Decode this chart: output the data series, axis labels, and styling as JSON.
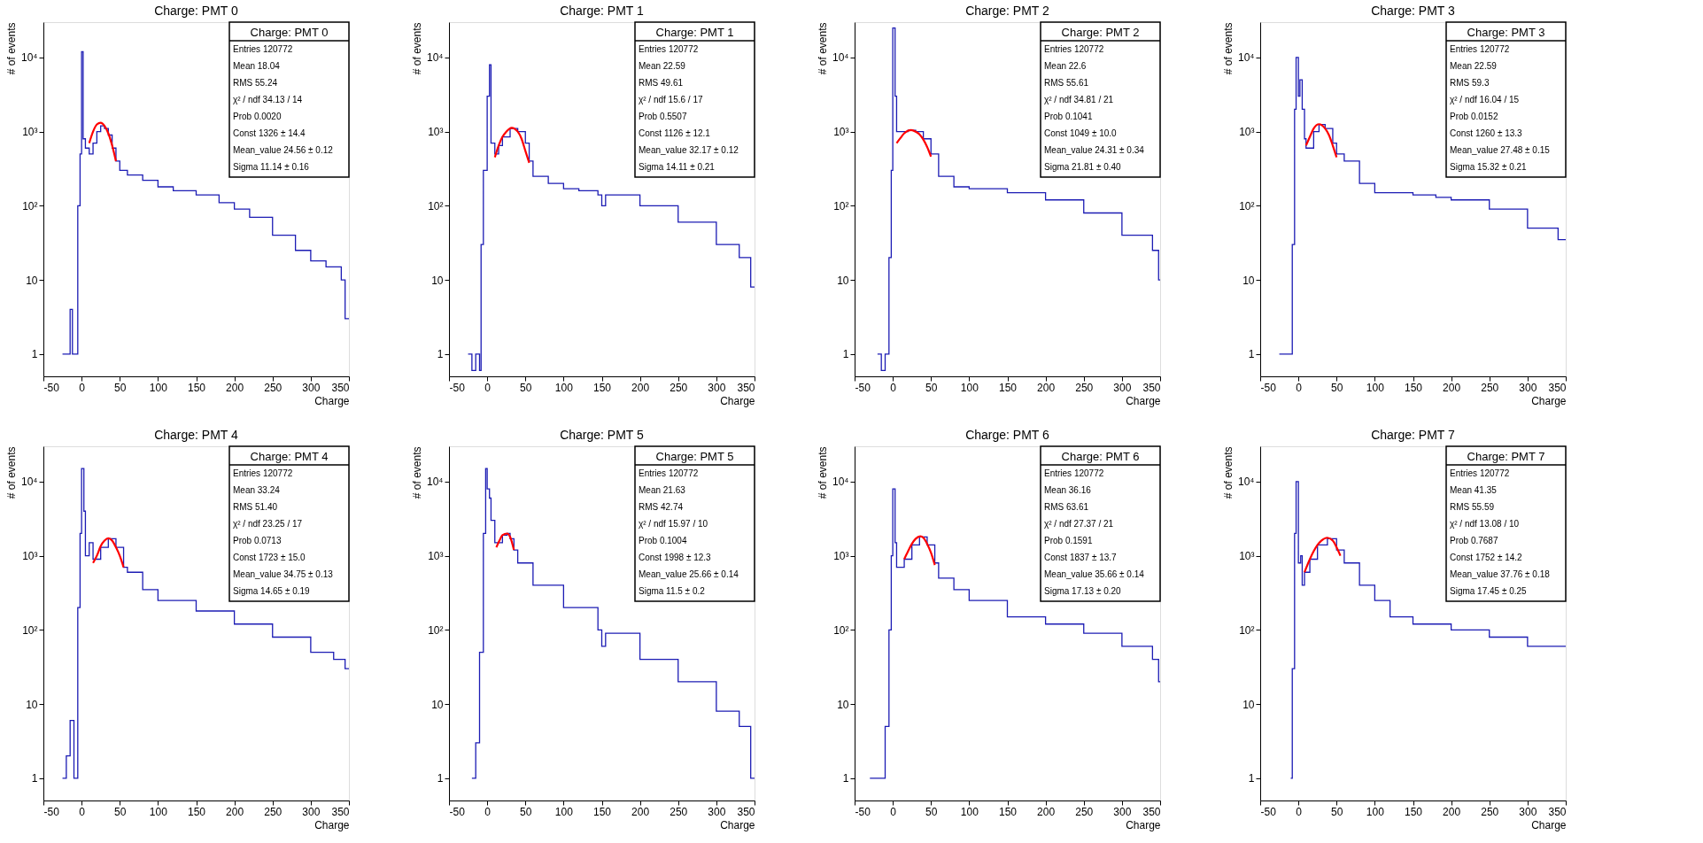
{
  "chart_data": [
    {
      "type": "step",
      "title": "Charge: PMT 0",
      "xlabel": "Charge",
      "ylabel": "# of events",
      "log": true,
      "grid": false,
      "xlim": [
        -50,
        350
      ],
      "xticks": [
        -50,
        0,
        50,
        100,
        150,
        200,
        250,
        300,
        350
      ],
      "ylim": [
        0.5,
        30000
      ],
      "yticks": [
        1,
        10,
        {
          "value": 100,
          "label": "10²"
        },
        {
          "value": 1000,
          "label": "10³"
        },
        {
          "value": 10000,
          "label": "10⁴"
        }
      ],
      "annotations": [
        "Charge: PMT 0",
        "Entries   120772",
        "Mean   18.04",
        "RMS   55.24",
        "χ² / ndf   34.13 / 14",
        "Prob   0.0020",
        "Const   1326 ± 14.4",
        "Mean_value   24.56 ± 0.12",
        "Sigma   11.14 ± 0.16"
      ],
      "series": [
        {
          "color": "#1c1cb4",
          "x": [
            -25,
            -22,
            -18,
            -15,
            -12,
            -5,
            -2,
            0,
            2,
            5,
            10,
            15,
            20,
            25,
            30,
            35,
            40,
            45,
            50,
            60,
            80,
            100,
            120,
            150,
            180,
            200,
            220,
            250,
            280,
            300,
            320,
            340,
            345,
            350
          ],
          "values": [
            1,
            1,
            1,
            4,
            1,
            100,
            500,
            12000,
            800,
            600,
            500,
            700,
            1000,
            1200,
            1100,
            900,
            600,
            400,
            300,
            260,
            220,
            180,
            160,
            140,
            110,
            90,
            70,
            40,
            25,
            18,
            15,
            10,
            3,
            3
          ]
        },
        {
          "type": "line",
          "color": "#ff0000",
          "x": [
            10,
            15,
            20,
            25,
            30,
            35,
            40,
            45
          ],
          "values": [
            700,
            1000,
            1250,
            1320,
            1200,
            950,
            650,
            400
          ]
        }
      ]
    },
    {
      "type": "step",
      "title": "Charge: PMT 1",
      "xlabel": "Charge",
      "ylabel": "# of events",
      "log": true,
      "grid": false,
      "xlim": [
        -50,
        350
      ],
      "xticks": [
        -50,
        0,
        50,
        100,
        150,
        200,
        250,
        300,
        350
      ],
      "ylim": [
        0.5,
        30000
      ],
      "yticks": [
        1,
        10,
        {
          "value": 100,
          "label": "10²"
        },
        {
          "value": 1000,
          "label": "10³"
        },
        {
          "value": 10000,
          "label": "10⁴"
        }
      ],
      "annotations": [
        "Charge: PMT 1",
        "Entries   120772",
        "Mean   22.59",
        "RMS   49.61",
        "χ² / ndf   15.6 / 17",
        "Prob   0.5507",
        "Const   1126 ± 12.1",
        "Mean_value   32.17 ± 0.12",
        "Sigma   14.11 ± 0.21"
      ],
      "series": [
        {
          "color": "#1c1cb4",
          "x": [
            -25,
            -20,
            -15,
            -10,
            -8,
            -5,
            0,
            3,
            5,
            10,
            15,
            20,
            30,
            40,
            50,
            55,
            60,
            80,
            100,
            120,
            145,
            150,
            155,
            200,
            250,
            300,
            330,
            345,
            350
          ],
          "values": [
            1,
            0.6,
            1,
            0.6,
            30,
            300,
            3000,
            8000,
            700,
            500,
            650,
            850,
            1100,
            1000,
            700,
            400,
            250,
            200,
            170,
            160,
            140,
            100,
            140,
            100,
            60,
            30,
            20,
            8,
            8
          ]
        },
        {
          "type": "line",
          "color": "#ff0000",
          "x": [
            10,
            15,
            20,
            25,
            32,
            40,
            45,
            50,
            55
          ],
          "values": [
            450,
            650,
            850,
            1000,
            1126,
            1000,
            800,
            550,
            380
          ]
        }
      ]
    },
    {
      "type": "step",
      "title": "Charge: PMT 2",
      "xlabel": "Charge",
      "ylabel": "# of events",
      "log": true,
      "grid": false,
      "xlim": [
        -50,
        350
      ],
      "xticks": [
        -50,
        0,
        50,
        100,
        150,
        200,
        250,
        300,
        350
      ],
      "ylim": [
        0.5,
        30000
      ],
      "yticks": [
        1,
        10,
        {
          "value": 100,
          "label": "10²"
        },
        {
          "value": 1000,
          "label": "10³"
        },
        {
          "value": 10000,
          "label": "10⁴"
        }
      ],
      "annotations": [
        "Charge: PMT 2",
        "Entries   120772",
        "Mean   22.6",
        "RMS   55.61",
        "χ² / ndf   34.81 / 21",
        "Prob   0.1041",
        "Const   1049 ± 10.0",
        "Mean_value   24.31 ± 0.34",
        "Sigma   21.81 ± 0.40"
      ],
      "series": [
        {
          "color": "#1c1cb4",
          "x": [
            -20,
            -15,
            -10,
            -5,
            -2,
            0,
            3,
            5,
            10,
            20,
            30,
            40,
            50,
            60,
            80,
            100,
            150,
            200,
            250,
            300,
            340,
            348,
            350
          ],
          "values": [
            1,
            0.6,
            1,
            20,
            300,
            25000,
            3000,
            1000,
            1000,
            1040,
            1000,
            800,
            500,
            250,
            180,
            170,
            150,
            120,
            80,
            40,
            25,
            10,
            10
          ]
        },
        {
          "type": "line",
          "color": "#ff0000",
          "x": [
            5,
            10,
            15,
            24,
            30,
            35,
            40,
            45,
            50
          ],
          "values": [
            700,
            820,
            950,
            1049,
            1000,
            920,
            780,
            620,
            460
          ]
        }
      ]
    },
    {
      "type": "step",
      "title": "Charge: PMT 3",
      "xlabel": "Charge",
      "ylabel": "# of events",
      "log": true,
      "grid": false,
      "xlim": [
        -50,
        350
      ],
      "xticks": [
        -50,
        0,
        50,
        100,
        150,
        200,
        250,
        300,
        350
      ],
      "ylim": [
        0.5,
        30000
      ],
      "yticks": [
        1,
        10,
        {
          "value": 100,
          "label": "10²"
        },
        {
          "value": 1000,
          "label": "10³"
        },
        {
          "value": 10000,
          "label": "10⁴"
        }
      ],
      "annotations": [
        "Charge: PMT 3",
        "Entries   120772",
        "Mean   22.59",
        "RMS   59.3",
        "χ² / ndf   16.04 / 15",
        "Prob   0.0152",
        "Const   1260 ± 13.3",
        "Mean_value   27.48 ± 0.15",
        "Sigma   15.32 ± 0.21"
      ],
      "series": [
        {
          "color": "#1c1cb4",
          "x": [
            -25,
            -15,
            -8,
            -5,
            -3,
            0,
            2,
            5,
            8,
            10,
            20,
            27,
            35,
            45,
            50,
            60,
            80,
            100,
            120,
            150,
            180,
            200,
            250,
            300,
            340,
            350
          ],
          "values": [
            1,
            1,
            30,
            2000,
            10000,
            3000,
            5000,
            2000,
            800,
            600,
            1000,
            1250,
            1100,
            700,
            500,
            400,
            200,
            150,
            150,
            140,
            130,
            120,
            90,
            50,
            35,
            35
          ]
        },
        {
          "type": "line",
          "color": "#ff0000",
          "x": [
            10,
            15,
            20,
            27,
            35,
            40,
            45,
            50
          ],
          "values": [
            650,
            850,
            1100,
            1260,
            1100,
            900,
            650,
            450
          ]
        }
      ]
    },
    {
      "type": "step",
      "title": "Charge: PMT 4",
      "xlabel": "Charge",
      "ylabel": "# of events",
      "log": true,
      "grid": false,
      "xlim": [
        -50,
        350
      ],
      "xticks": [
        -50,
        0,
        50,
        100,
        150,
        200,
        250,
        300,
        350
      ],
      "ylim": [
        0.5,
        30000
      ],
      "yticks": [
        1,
        10,
        {
          "value": 100,
          "label": "10²"
        },
        {
          "value": 1000,
          "label": "10³"
        },
        {
          "value": 10000,
          "label": "10⁴"
        }
      ],
      "annotations": [
        "Charge: PMT 4",
        "Entries   120772",
        "Mean   33.24",
        "RMS   51.40",
        "χ² / ndf   23.25 / 17",
        "Prob   0.0713",
        "Const   1723 ± 15.0",
        "Mean_value   34.75 ± 0.13",
        "Sigma   14.65 ± 0.19"
      ],
      "series": [
        {
          "color": "#1c1cb4",
          "x": [
            -25,
            -20,
            -15,
            -10,
            -5,
            -2,
            0,
            3,
            5,
            10,
            15,
            25,
            35,
            45,
            55,
            60,
            80,
            100,
            150,
            200,
            250,
            300,
            330,
            345,
            350
          ],
          "values": [
            1,
            2,
            6,
            1,
            200,
            2000,
            15000,
            4000,
            1000,
            1500,
            900,
            1300,
            1700,
            1300,
            700,
            600,
            350,
            250,
            180,
            120,
            80,
            50,
            40,
            30,
            30
          ]
        },
        {
          "type": "line",
          "color": "#ff0000",
          "x": [
            15,
            20,
            25,
            30,
            35,
            40,
            45,
            50,
            55
          ],
          "values": [
            800,
            1000,
            1350,
            1600,
            1723,
            1600,
            1300,
            1000,
            700
          ]
        }
      ]
    },
    {
      "type": "step",
      "title": "Charge: PMT 5",
      "xlabel": "Charge",
      "ylabel": "# of events",
      "log": true,
      "grid": false,
      "xlim": [
        -50,
        350
      ],
      "xticks": [
        -50,
        0,
        50,
        100,
        150,
        200,
        250,
        300,
        350
      ],
      "ylim": [
        0.5,
        30000
      ],
      "yticks": [
        1,
        10,
        {
          "value": 100,
          "label": "10²"
        },
        {
          "value": 1000,
          "label": "10³"
        },
        {
          "value": 10000,
          "label": "10⁴"
        }
      ],
      "annotations": [
        "Charge: PMT 5",
        "Entries   120772",
        "Mean   21.63",
        "RMS   42.74",
        "χ² / ndf   15.97 / 10",
        "Prob   0.1004",
        "Const   1998 ± 12.3",
        "Mean_value   25.66 ± 0.14",
        "Sigma   11.5 ± 0.2"
      ],
      "series": [
        {
          "color": "#1c1cb4",
          "x": [
            -20,
            -15,
            -10,
            -5,
            -2,
            0,
            3,
            5,
            10,
            15,
            20,
            26,
            30,
            35,
            40,
            60,
            100,
            145,
            150,
            155,
            200,
            250,
            300,
            330,
            345,
            350
          ],
          "values": [
            1,
            3,
            50,
            2000,
            15000,
            8000,
            6000,
            3000,
            1500,
            1500,
            1900,
            2000,
            1700,
            1200,
            800,
            400,
            200,
            100,
            60,
            90,
            40,
            20,
            8,
            5,
            1,
            1
          ]
        },
        {
          "type": "line",
          "color": "#ff0000",
          "x": [
            12,
            16,
            20,
            26,
            30,
            35
          ],
          "values": [
            1300,
            1600,
            1900,
            1998,
            1800,
            1200
          ]
        }
      ]
    },
    {
      "type": "step",
      "title": "Charge: PMT 6",
      "xlabel": "Charge",
      "ylabel": "# of events",
      "log": true,
      "grid": false,
      "xlim": [
        -50,
        350
      ],
      "xticks": [
        -50,
        0,
        50,
        100,
        150,
        200,
        250,
        300,
        350
      ],
      "ylim": [
        0.5,
        30000
      ],
      "yticks": [
        1,
        10,
        {
          "value": 100,
          "label": "10²"
        },
        {
          "value": 1000,
          "label": "10³"
        },
        {
          "value": 10000,
          "label": "10⁴"
        }
      ],
      "annotations": [
        "Charge: PMT 6",
        "Entries   120772",
        "Mean   36.16",
        "RMS   63.61",
        "χ² / ndf   27.37 / 21",
        "Prob   0.1591",
        "Const   1837 ± 13.7",
        "Mean_value   35.66 ± 0.14",
        "Sigma   17.13 ± 0.20"
      ],
      "series": [
        {
          "color": "#1c1cb4",
          "x": [
            -30,
            -20,
            -10,
            -5,
            -2,
            0,
            3,
            5,
            10,
            15,
            25,
            35,
            45,
            55,
            60,
            80,
            100,
            150,
            200,
            250,
            300,
            340,
            348,
            350
          ],
          "values": [
            1,
            1,
            5,
            100,
            1000,
            8000,
            1500,
            700,
            700,
            900,
            1400,
            1800,
            1400,
            800,
            500,
            350,
            250,
            150,
            120,
            90,
            60,
            40,
            20,
            20
          ]
        },
        {
          "type": "line",
          "color": "#ff0000",
          "x": [
            15,
            20,
            25,
            30,
            36,
            40,
            45,
            50,
            55
          ],
          "values": [
            900,
            1150,
            1450,
            1700,
            1837,
            1750,
            1450,
            1100,
            750
          ]
        }
      ]
    },
    {
      "type": "step",
      "title": "Charge: PMT 7",
      "xlabel": "Charge",
      "ylabel": "# of events",
      "log": true,
      "grid": false,
      "xlim": [
        -50,
        350
      ],
      "xticks": [
        -50,
        0,
        50,
        100,
        150,
        200,
        250,
        300,
        350
      ],
      "ylim": [
        0.5,
        30000
      ],
      "yticks": [
        1,
        10,
        {
          "value": 100,
          "label": "10²"
        },
        {
          "value": 1000,
          "label": "10³"
        },
        {
          "value": 10000,
          "label": "10⁴"
        }
      ],
      "annotations": [
        "Charge: PMT 7",
        "Entries   120772",
        "Mean   41.35",
        "RMS   55.59",
        "χ² / ndf   13.08 / 10",
        "Prob   0.7687",
        "Const   1752 ± 14.2",
        "Mean_value   37.76 ± 0.18",
        "Sigma   17.45 ± 0.25"
      ],
      "series": [
        {
          "color": "#1c1cb4",
          "x": [
            -10,
            -8,
            -5,
            -3,
            0,
            3,
            5,
            8,
            15,
            25,
            38,
            50,
            60,
            80,
            100,
            120,
            150,
            200,
            250,
            300,
            340,
            350
          ],
          "values": [
            1,
            30,
            2000,
            10000,
            800,
            1000,
            400,
            600,
            900,
            1400,
            1700,
            1200,
            800,
            400,
            250,
            150,
            120,
            100,
            80,
            60,
            60,
            60
          ]
        },
        {
          "type": "line",
          "color": "#ff0000",
          "x": [
            8,
            15,
            20,
            25,
            30,
            38,
            45,
            50,
            55
          ],
          "values": [
            600,
            900,
            1150,
            1400,
            1600,
            1752,
            1600,
            1300,
            1000
          ]
        }
      ]
    }
  ]
}
